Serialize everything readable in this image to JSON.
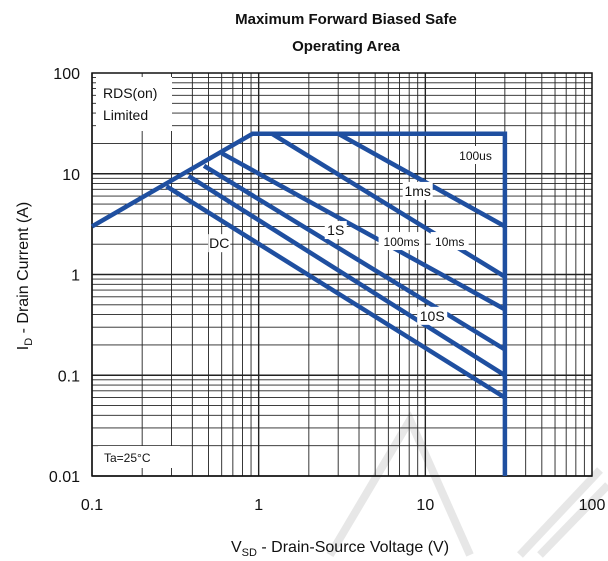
{
  "chart_data": {
    "type": "line",
    "title_line1": "Maximum Forward Biased Safe",
    "title_line2": "Operating Area",
    "xlabel_main": "V",
    "xlabel_sub": "SD",
    "xlabel_rest": " - Drain-Source Voltage (V)",
    "ylabel_main": "I",
    "ylabel_sub": "D",
    "ylabel_rest": " - Drain Current (A)",
    "x_scale": "log",
    "y_scale": "log",
    "xlim": [
      0.1,
      100
    ],
    "ylim": [
      0.01,
      100
    ],
    "x_ticks": [
      0.1,
      1,
      10,
      100
    ],
    "x_tick_labels": [
      "0.1",
      "1",
      "10",
      "100"
    ],
    "y_ticks": [
      0.01,
      0.1,
      1,
      10,
      100
    ],
    "y_tick_labels": [
      "0.01",
      "0.1",
      "1",
      "10",
      "100"
    ],
    "grid": true,
    "line_color": "#1f4fa0",
    "annotations": {
      "rds_line1": "RDS(on)",
      "rds_line2": "Limited",
      "temp": "Ta=25°C"
    },
    "series": [
      {
        "name": "100us",
        "x": [
          0.1,
          0.92,
          30,
          30
        ],
        "y": [
          3,
          25,
          25,
          0.01
        ]
      },
      {
        "name": "1ms",
        "x": [
          3.0,
          30
        ],
        "y": [
          25,
          3.0
        ]
      },
      {
        "name": "10ms",
        "x": [
          1.2,
          30
        ],
        "y": [
          25,
          0.95
        ]
      },
      {
        "name": "100ms",
        "x": [
          0.6,
          30
        ],
        "y": [
          16,
          0.45
        ]
      },
      {
        "name": "1S",
        "x": [
          0.47,
          30
        ],
        "y": [
          12,
          0.18
        ]
      },
      {
        "name": "10S",
        "x": [
          0.38,
          30
        ],
        "y": [
          9.5,
          0.1
        ]
      },
      {
        "name": "DC",
        "x": [
          0.28,
          30
        ],
        "y": [
          7.5,
          0.06
        ]
      }
    ],
    "series_labels": [
      {
        "text": "100us",
        "x": 20,
        "y": 15
      },
      {
        "text": "1ms",
        "x": 9,
        "y": 6.6
      },
      {
        "text": "10ms",
        "x": 14,
        "y": 2.1
      },
      {
        "text": "100ms",
        "x": 7.2,
        "y": 2.1
      },
      {
        "text": "1S",
        "x": 2.9,
        "y": 2.7
      },
      {
        "text": "DC",
        "x": 0.58,
        "y": 2.0
      },
      {
        "text": "10S",
        "x": 11,
        "y": 0.38
      }
    ]
  }
}
